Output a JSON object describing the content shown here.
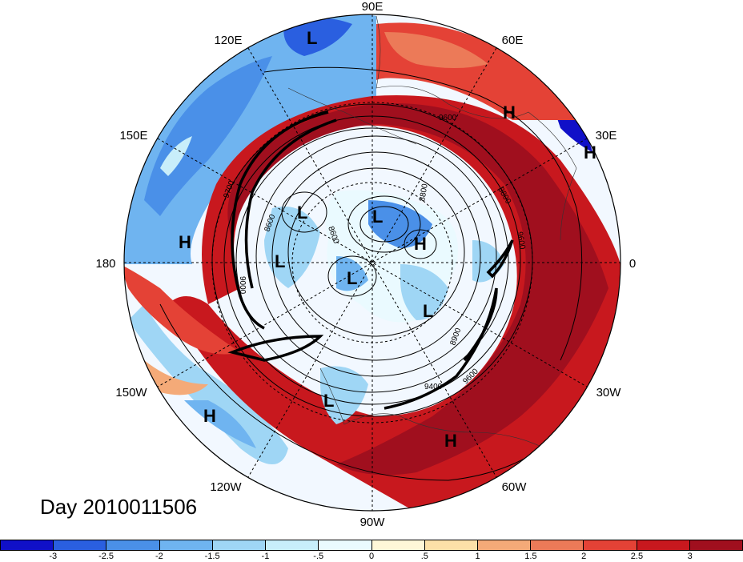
{
  "map": {
    "lon_labels": [
      "90E",
      "60E",
      "30E",
      "0",
      "30W",
      "60W",
      "90W",
      "120W",
      "150W",
      "180",
      "150E",
      "120E"
    ],
    "highs_lows": [
      {
        "t": "L"
      },
      {
        "t": "H"
      },
      {
        "t": "H"
      },
      {
        "t": "L"
      },
      {
        "t": "L"
      },
      {
        "t": "H"
      },
      {
        "t": "L"
      },
      {
        "t": "H"
      },
      {
        "t": "L"
      },
      {
        "t": "L"
      },
      {
        "t": "L"
      },
      {
        "t": "H"
      },
      {
        "t": "H"
      }
    ],
    "contour_labels": [
      "9600",
      "9700",
      "8600",
      "8800",
      "9400",
      "9600",
      "8900",
      "9600",
      "9000",
      "8600",
      "8800"
    ],
    "ocean_color": "#ffffff"
  },
  "date_label": "Day 2010011506",
  "colorbar": {
    "colors": [
      "#1010c8",
      "#2a5fe0",
      "#4a90e8",
      "#6fb4f0",
      "#9fd6f5",
      "#c8eefa",
      "#eafaff",
      "#fff7d8",
      "#fce0a8",
      "#f4aa78",
      "#ec7a58",
      "#e44236",
      "#c8181e",
      "#a00f1e"
    ],
    "tick_labels": [
      "-3",
      "-2.5",
      "-2",
      "-1.5",
      "-1",
      "-.5",
      "0",
      ".5",
      "1",
      "1.5",
      "2",
      "2.5",
      "3"
    ]
  }
}
